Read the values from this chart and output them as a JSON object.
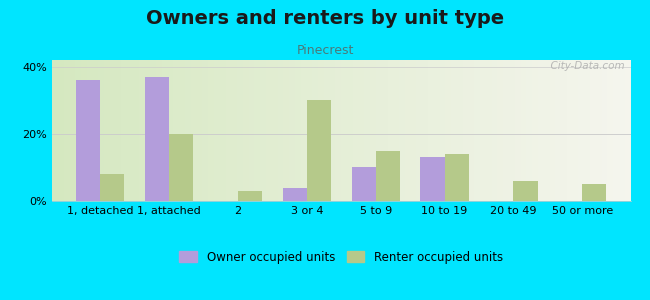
{
  "title": "Owners and renters by unit type",
  "subtitle": "Pinecrest",
  "categories": [
    "1, detached",
    "1, attached",
    "2",
    "3 or 4",
    "5 to 9",
    "10 to 19",
    "20 to 49",
    "50 or more"
  ],
  "owner_values": [
    36,
    37,
    0,
    4,
    10,
    13,
    0,
    0
  ],
  "renter_values": [
    8,
    20,
    3,
    30,
    15,
    14,
    6,
    5
  ],
  "owner_color": "#b39ddb",
  "renter_color": "#b5c98a",
  "background_color": "#00e5ff",
  "ylim": [
    0,
    42
  ],
  "yticks": [
    0,
    20,
    40
  ],
  "ytick_labels": [
    "0%",
    "20%",
    "40%"
  ],
  "bar_width": 0.35,
  "legend_owner": "Owner occupied units",
  "legend_renter": "Renter occupied units",
  "watermark": "City-Data.com",
  "title_fontsize": 14,
  "subtitle_fontsize": 9,
  "tick_fontsize": 8
}
